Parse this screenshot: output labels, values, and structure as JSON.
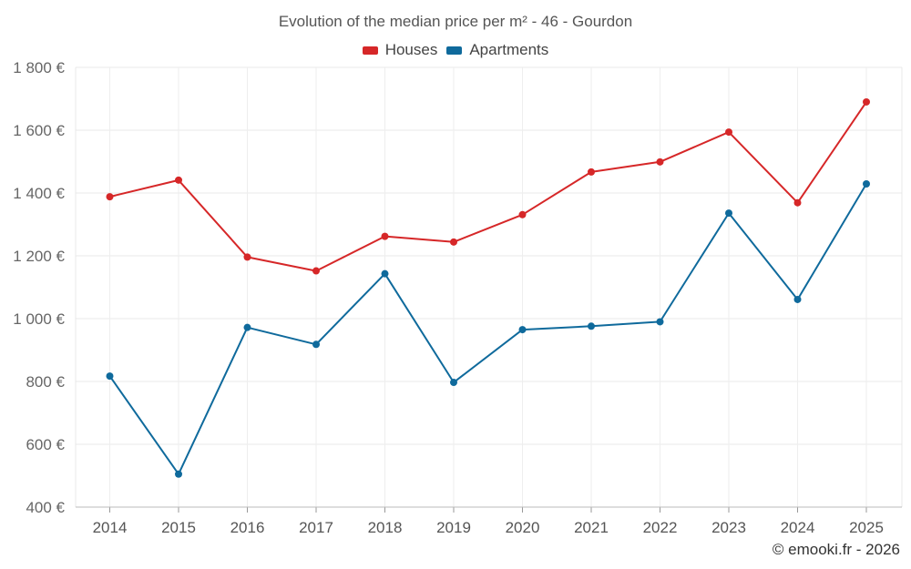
{
  "chart_data": {
    "type": "line",
    "title": "Evolution of the median price per m² - 46 - Gourdon",
    "categories": [
      "2014",
      "2015",
      "2016",
      "2017",
      "2018",
      "2019",
      "2020",
      "2021",
      "2022",
      "2023",
      "2024",
      "2025"
    ],
    "series": [
      {
        "name": "Houses",
        "color": "#d62728",
        "values": [
          1388,
          1441,
          1196,
          1152,
          1262,
          1244,
          1331,
          1467,
          1499,
          1594,
          1369,
          1690
        ]
      },
      {
        "name": "Apartments",
        "color": "#0f6a9c",
        "values": [
          817,
          505,
          972,
          918,
          1143,
          797,
          965,
          976,
          990,
          1336,
          1061,
          1429
        ]
      }
    ],
    "ylim": [
      400,
      1800
    ],
    "yticks": [
      400,
      600,
      800,
      1000,
      1200,
      1400,
      1600,
      1800
    ],
    "ytick_labels": [
      "400 €",
      "600 €",
      "800 €",
      "1 000 €",
      "1 200 €",
      "1 400 €",
      "1 600 €",
      "1 800 €"
    ],
    "xlabel": "",
    "ylabel": "",
    "grid": true,
    "legend_position": "top-center"
  },
  "legend": {
    "houses_label": "Houses",
    "apartments_label": "Apartments",
    "houses_color": "#d62728",
    "apartments_color": "#0f6a9c"
  },
  "credit": "© emooki.fr - 2026"
}
